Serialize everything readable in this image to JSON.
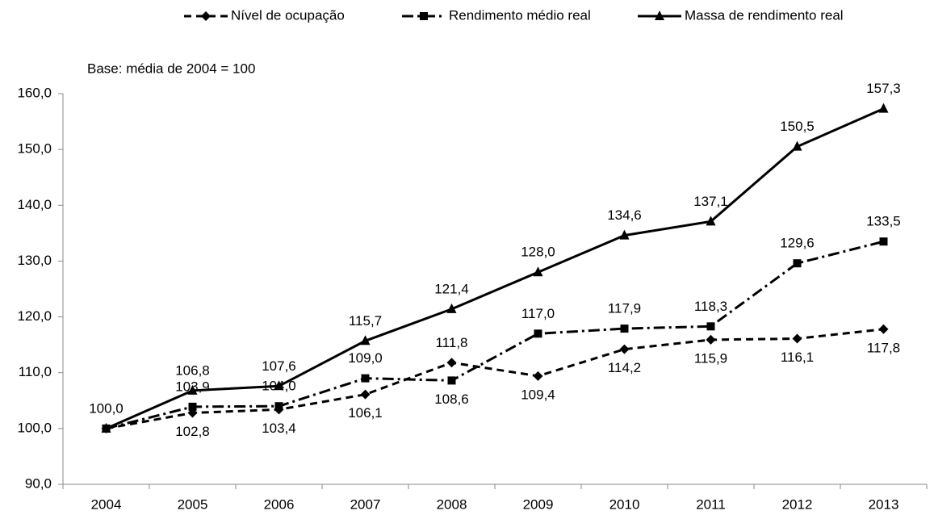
{
  "chart_data": {
    "type": "line",
    "annotation": "Base: média de 2004 = 100",
    "categories": [
      "2004",
      "2005",
      "2006",
      "2007",
      "2008",
      "2009",
      "2010",
      "2011",
      "2012",
      "2013"
    ],
    "ylim": [
      90,
      160
    ],
    "yticks": [
      {
        "value": 90,
        "label": "90,0"
      },
      {
        "value": 100,
        "label": "100,0"
      },
      {
        "value": 110,
        "label": "110,0"
      },
      {
        "value": 120,
        "label": "120,0"
      },
      {
        "value": 130,
        "label": "130,0"
      },
      {
        "value": 140,
        "label": "140,0"
      },
      {
        "value": 150,
        "label": "150,0"
      },
      {
        "value": 160,
        "label": "160,0"
      }
    ],
    "legend_position": "top",
    "series": [
      {
        "name": "Nível de ocupação",
        "color": "#000000",
        "line_style": "dashed",
        "marker": "diamond",
        "values": [
          100.0,
          102.8,
          103.4,
          106.1,
          111.8,
          109.4,
          114.2,
          115.9,
          116.1,
          117.8
        ],
        "value_labels": [
          null,
          "102,8",
          "103,4",
          "106,1",
          "111,8",
          "109,4",
          "114,2",
          "115,9",
          "116,1",
          "117,8"
        ]
      },
      {
        "name": "Rendimento médio real",
        "color": "#000000",
        "line_style": "dash-dot",
        "marker": "square",
        "values": [
          100.0,
          103.9,
          104.0,
          109.0,
          108.6,
          117.0,
          117.9,
          118.3,
          129.6,
          133.5
        ],
        "value_labels": [
          null,
          "103,9",
          "104,0",
          "109,0",
          "108,6",
          "117,0",
          "117,9",
          "118,3",
          "129,6",
          "133,5"
        ]
      },
      {
        "name": "Massa de rendimento real",
        "color": "#000000",
        "line_style": "solid",
        "marker": "triangle",
        "values": [
          100.0,
          106.8,
          107.6,
          115.7,
          121.4,
          128.0,
          134.6,
          137.1,
          150.5,
          157.3
        ],
        "value_labels": [
          "100,0",
          "106,8",
          "107,6",
          "115,7",
          "121,4",
          "128,0",
          "134,6",
          "137,1",
          "150,5",
          "157,3"
        ]
      }
    ]
  }
}
